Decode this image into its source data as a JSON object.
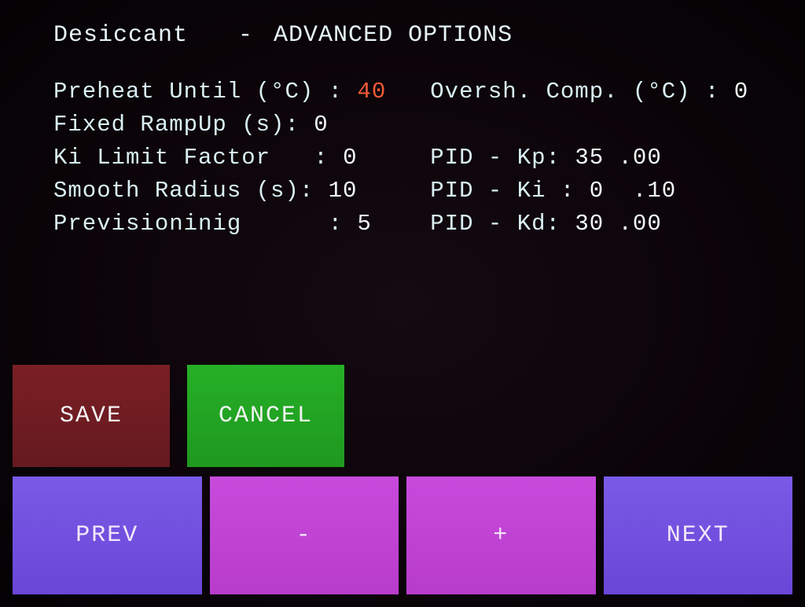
{
  "header": {
    "device": "Desiccant",
    "separator": "-",
    "title": "ADVANCED OPTIONS"
  },
  "params_left": [
    {
      "label": "Preheat Until (°C) :",
      "value": "40",
      "highlight": true
    },
    {
      "label": "Fixed RampUp (s):",
      "value": "0",
      "highlight": false
    },
    {
      "label": "Ki Limit Factor   :",
      "value": "0",
      "highlight": false
    },
    {
      "label": "Smooth Radius (s):",
      "value": "10",
      "highlight": false
    },
    {
      "label": "Previsioninig      :",
      "value": "5",
      "highlight": false
    }
  ],
  "params_right": [
    {
      "label": "Oversh. Comp. (°C) :",
      "value": "0"
    },
    {
      "label": "",
      "value": ""
    },
    {
      "label": "PID - Kp:",
      "value": "35 .00"
    },
    {
      "label": "PID - Ki :",
      "value": "0  .10"
    },
    {
      "label": "PID - Kd:",
      "value": "30 .00"
    }
  ],
  "buttons": {
    "save": "SAVE",
    "cancel": "CANCEL",
    "prev": "PREV",
    "minus": "-",
    "plus": "+",
    "next": "NEXT"
  },
  "colors": {
    "save_bg": "#6f1c22",
    "cancel_bg": "#22a424",
    "nav_side": "#7050e0",
    "nav_mid": "#c048d6",
    "text": "#e8f6fa",
    "highlight": "#f45a36"
  }
}
